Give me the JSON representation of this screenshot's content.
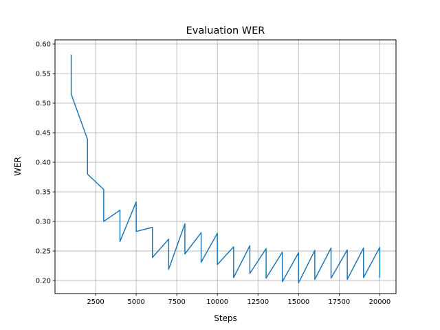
{
  "chart_data": {
    "type": "line",
    "title": "Evaluation WER",
    "xlabel": "Steps",
    "ylabel": "WER",
    "xlim": [
      0,
      21000
    ],
    "ylim": [
      0.178,
      0.607
    ],
    "grid": true,
    "legend": "none",
    "line_color": "#1f77b4",
    "grid_color": "#b0b0b0",
    "xticks": [
      2500,
      5000,
      7500,
      10000,
      12500,
      15000,
      17500,
      20000
    ],
    "xtick_labels": [
      "2500",
      "5000",
      "7500",
      "10000",
      "12500",
      "15000",
      "17500",
      "20000"
    ],
    "yticks": [
      0.2,
      0.25,
      0.3,
      0.35,
      0.4,
      0.45,
      0.5,
      0.55,
      0.6
    ],
    "ytick_labels": [
      "0.20",
      "0.25",
      "0.30",
      "0.35",
      "0.40",
      "0.45",
      "0.50",
      "0.55",
      "0.60"
    ],
    "series": [
      {
        "x": [
          1000,
          1000,
          2000,
          2000,
          3000,
          3000,
          4000,
          4000,
          5000,
          5000,
          6000,
          6000,
          7000,
          7000,
          8000,
          8000,
          9000,
          9000,
          10000,
          10000,
          11000,
          11000,
          12000,
          12000,
          13000,
          13000,
          14000,
          14000,
          15000,
          15000,
          16000,
          16000,
          17000,
          17000,
          18000,
          18000,
          19000,
          19000,
          20000,
          20000
        ],
        "y": [
          0.582,
          0.515,
          0.439,
          0.38,
          0.354,
          0.3,
          0.319,
          0.266,
          0.333,
          0.283,
          0.29,
          0.239,
          0.27,
          0.219,
          0.296,
          0.245,
          0.281,
          0.231,
          0.28,
          0.227,
          0.257,
          0.205,
          0.259,
          0.212,
          0.254,
          0.204,
          0.248,
          0.198,
          0.247,
          0.196,
          0.251,
          0.202,
          0.255,
          0.204,
          0.252,
          0.202,
          0.255,
          0.205,
          0.256,
          0.205
        ]
      }
    ]
  }
}
